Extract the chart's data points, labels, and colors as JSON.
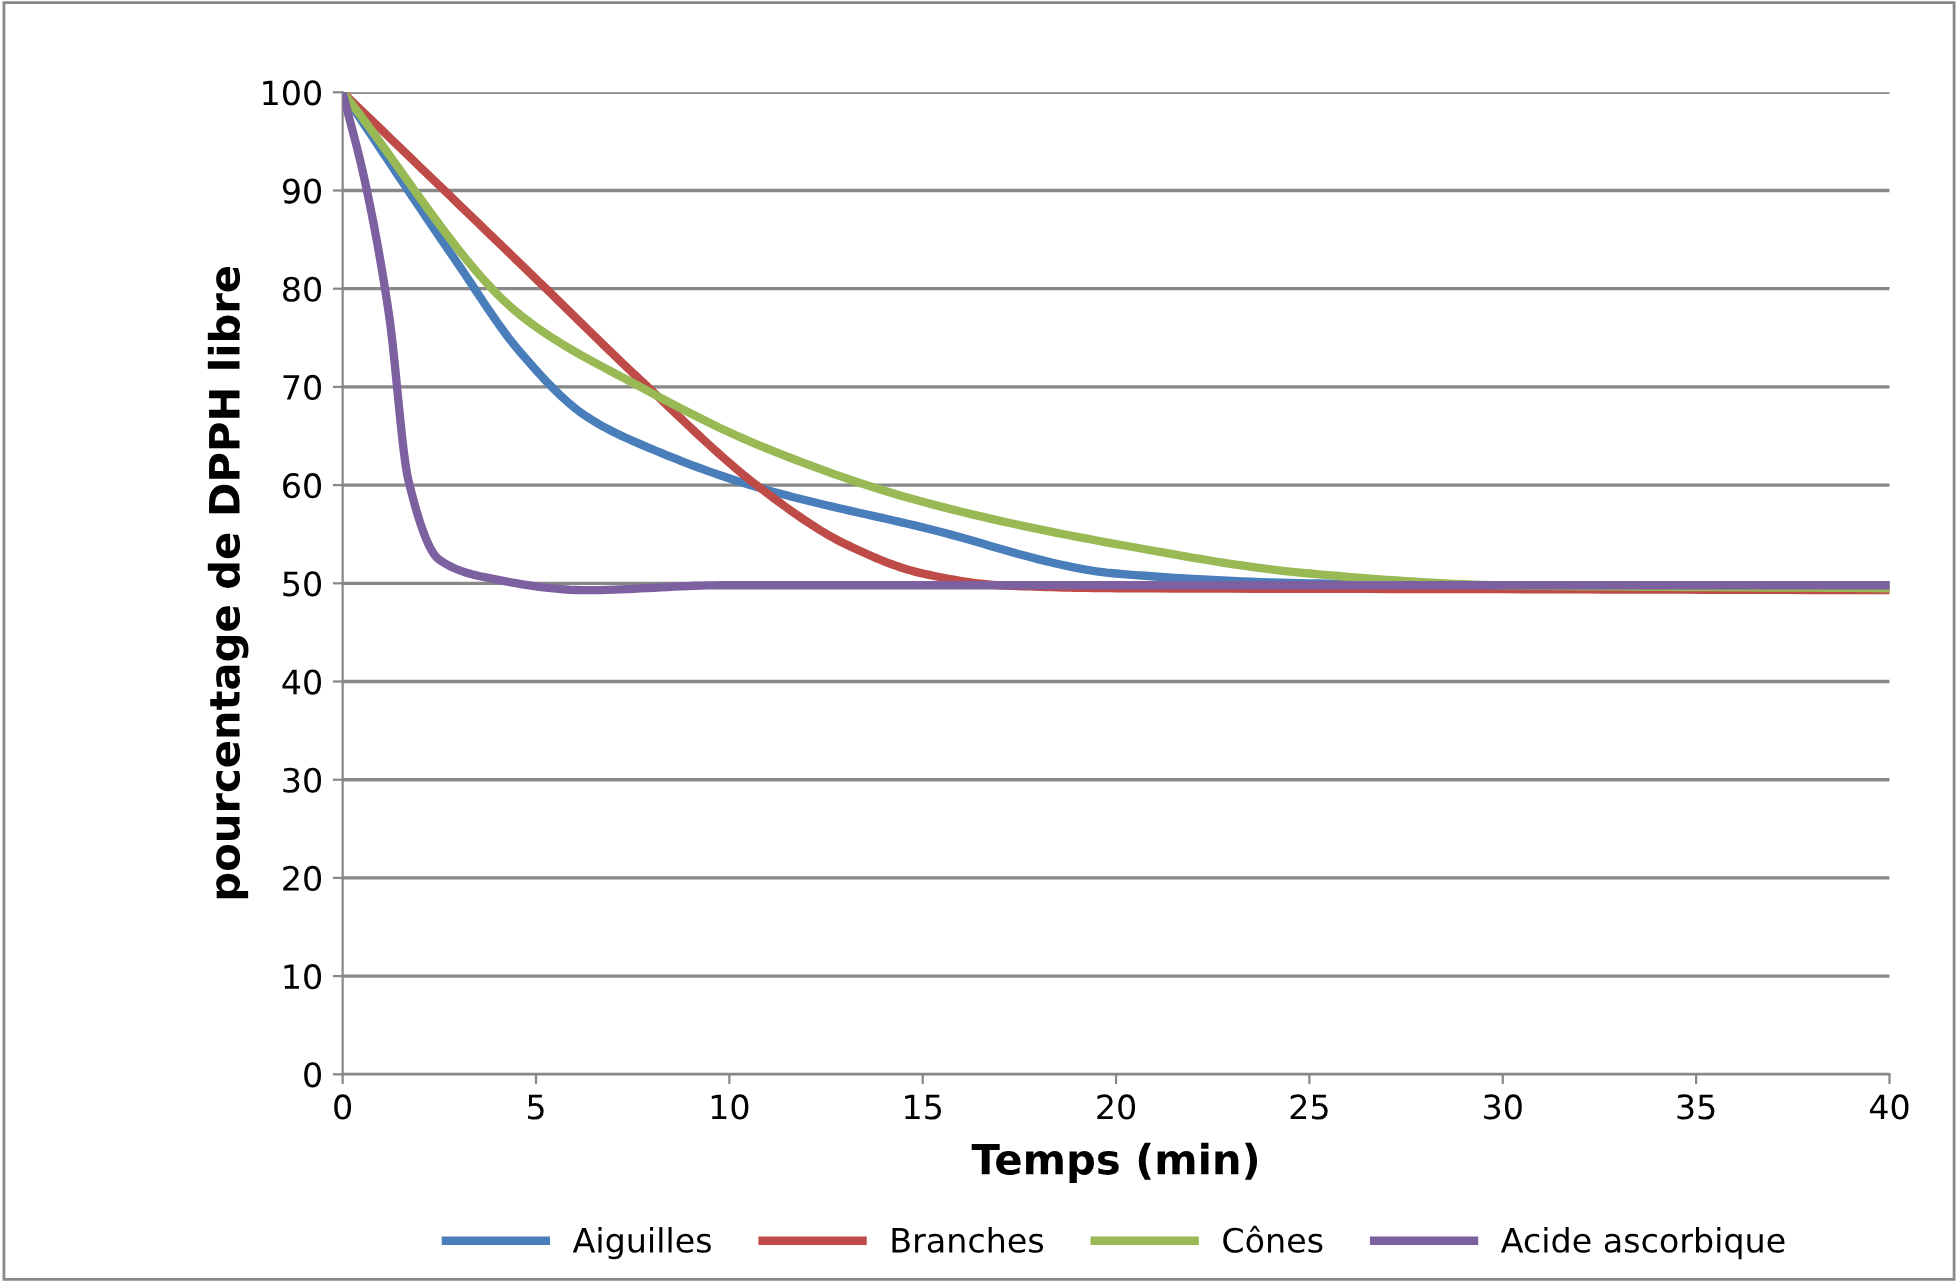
{
  "chart_data": {
    "type": "line",
    "xlabel": "Temps (min)",
    "ylabel": "pourcentage de DPPH libre",
    "xlim": [
      0,
      40
    ],
    "ylim": [
      0,
      100
    ],
    "xticks": [
      0,
      5,
      10,
      15,
      20,
      25,
      30,
      35,
      40
    ],
    "yticks": [
      0,
      10,
      20,
      30,
      40,
      50,
      60,
      70,
      80,
      90,
      100
    ],
    "grid": "y",
    "legend": "bottom",
    "marker": "none",
    "line_style": "solid",
    "series": [
      {
        "name": "Aiguilles",
        "color": "#4a7ebb",
        "x": [
          0,
          2.9,
          4.6,
          6.3,
          8.1,
          10.8,
          15,
          20,
          25,
          30,
          35,
          40
        ],
        "values": [
          100,
          83,
          73.5,
          67,
          63.5,
          59.7,
          55.7,
          51,
          50,
          49.8,
          49.8,
          49.8
        ]
      },
      {
        "name": "Branches",
        "color": "#be4b48",
        "x": [
          0,
          5,
          7.7,
          10.8,
          13,
          15,
          17,
          20,
          30,
          40
        ],
        "values": [
          100,
          81,
          70.7,
          59.7,
          54,
          51,
          49.8,
          49.5,
          49.4,
          49.3
        ]
      },
      {
        "name": "Cônes",
        "color": "#98b954",
        "x": [
          0,
          4.6,
          7.7,
          10.8,
          15,
          20,
          25,
          30,
          40
        ],
        "values": [
          100,
          77.3,
          70,
          64,
          58.3,
          54,
          51,
          49.8,
          49.5
        ]
      },
      {
        "name": "Acide ascorbique",
        "color": "#7d60a0",
        "x": [
          0,
          0.6,
          1.2,
          1.7,
          2.5,
          3.7,
          6.3,
          9.8,
          20,
          40
        ],
        "values": [
          100,
          90.5,
          77.3,
          60.5,
          52.4,
          50.6,
          49.3,
          49.8,
          49.8,
          49.8
        ]
      }
    ]
  }
}
